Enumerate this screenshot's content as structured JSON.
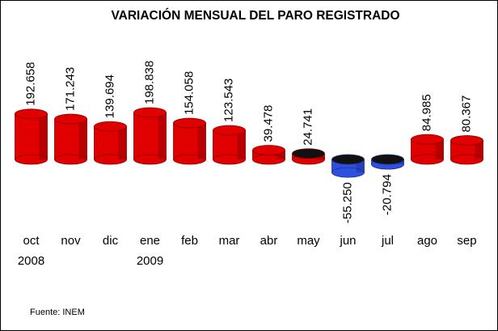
{
  "chart_data": {
    "type": "bar",
    "title": "VARIACIÓN MENSUAL DEL PARO REGISTRADO",
    "categories": [
      "oct",
      "nov",
      "dic",
      "ene",
      "feb",
      "mar",
      "abr",
      "may",
      "jun",
      "jul",
      "ago",
      "sep"
    ],
    "category_years": [
      "2008",
      null,
      null,
      "2009",
      null,
      null,
      null,
      null,
      null,
      null,
      null,
      null
    ],
    "values": [
      192658,
      171243,
      139694,
      198838,
      154058,
      123543,
      39478,
      24741,
      -55250,
      -20794,
      84985,
      80367
    ],
    "value_labels": [
      "192.658",
      "171.243",
      "139.694",
      "198.838",
      "154.058",
      "123.543",
      "39.478",
      "24.741",
      "-55.250",
      "-20.794",
      "84.985",
      "80.367"
    ],
    "colors": [
      "#e00000",
      "#e00000",
      "#e00000",
      "#e00000",
      "#e00000",
      "#e00000",
      "#e00000",
      "#e00000",
      "#2f4fe0",
      "#2f4fe0",
      "#e00000",
      "#e00000"
    ],
    "source": "Fuente: INEM"
  }
}
